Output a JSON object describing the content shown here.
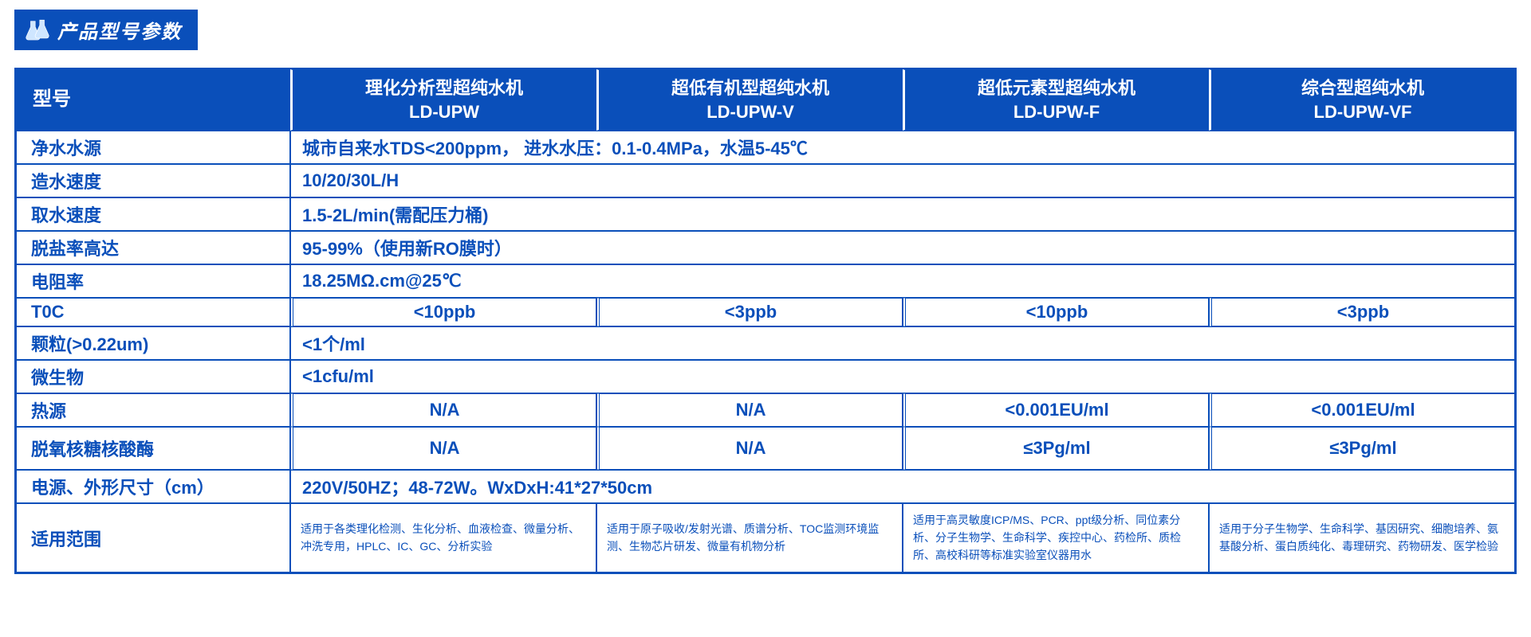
{
  "colors": {
    "brand": "#0a4fba",
    "white": "#ffffff"
  },
  "banner": {
    "title": "产品型号参数",
    "icon": "flask-icon"
  },
  "table": {
    "header_label": "型号",
    "columns": [
      {
        "line1": "理化分析型超纯水机",
        "line2": "LD-UPW"
      },
      {
        "line1": "超低有机型超纯水机",
        "line2": "LD-UPW-V"
      },
      {
        "line1": "超低元素型超纯水机",
        "line2": "LD-UPW-F"
      },
      {
        "line1": "综合型超纯水机",
        "line2": "LD-UPW-VF"
      }
    ],
    "rows": [
      {
        "label": "净水水源",
        "type": "full",
        "value": "城市自来水TDS<200ppm，  进水水压：0.1-0.4MPa，水温5-45℃"
      },
      {
        "label": "造水速度",
        "type": "full",
        "value": "10/20/30L/H"
      },
      {
        "label": "取水速度",
        "type": "full",
        "value": "1.5-2L/min(需配压力桶)"
      },
      {
        "label": "脱盐率高达",
        "type": "full",
        "value": "95-99%（使用新RO膜时）"
      },
      {
        "label": "电阻率",
        "type": "full",
        "value": "18.25MΩ.cm@25℃"
      },
      {
        "label": "T0C",
        "type": "cells",
        "values": [
          "<10ppb",
          "<3ppb",
          "<10ppb",
          "<3ppb"
        ]
      },
      {
        "label": "颗粒(>0.22um)",
        "type": "full",
        "value": "<1个/ml"
      },
      {
        "label": "微生物",
        "type": "full",
        "value": "<1cfu/ml"
      },
      {
        "label": "热源",
        "type": "cells",
        "values": [
          "N/A",
          "N/A",
          "<0.001EU/ml",
          "<0.001EU/ml"
        ]
      },
      {
        "label": "脱氧核糖核酸酶",
        "type": "cells",
        "tall": true,
        "values": [
          "N/A",
          "N/A",
          "≤3Pg/ml",
          "≤3Pg/ml"
        ]
      },
      {
        "label": "电源、外形尺寸（cm）",
        "type": "full",
        "value": "220V/50HZ；48-72W。WxDxH:41*27*50cm"
      },
      {
        "label": "适用范围",
        "type": "desc",
        "tall": true,
        "values": [
          "适用于各类理化检测、生化分析、血液检查、微量分析、冲洗专用，HPLC、IC、GC、分析实验",
          "适用于原子吸收/发射光谱、质谱分析、TOC监测环境监测、生物芯片研发、微量有机物分析",
          "适用于高灵敏度ICP/MS、PCR、ppt级分析、同位素分析、分子生物学、生命科学、疾控中心、药检所、质检所、高校科研等标准实验室仪器用水",
          "适用于分子生物学、生命科学、基因研究、细胞培养、氨基酸分析、蛋白质纯化、毒理研究、药物研发、医学检验"
        ]
      }
    ]
  }
}
